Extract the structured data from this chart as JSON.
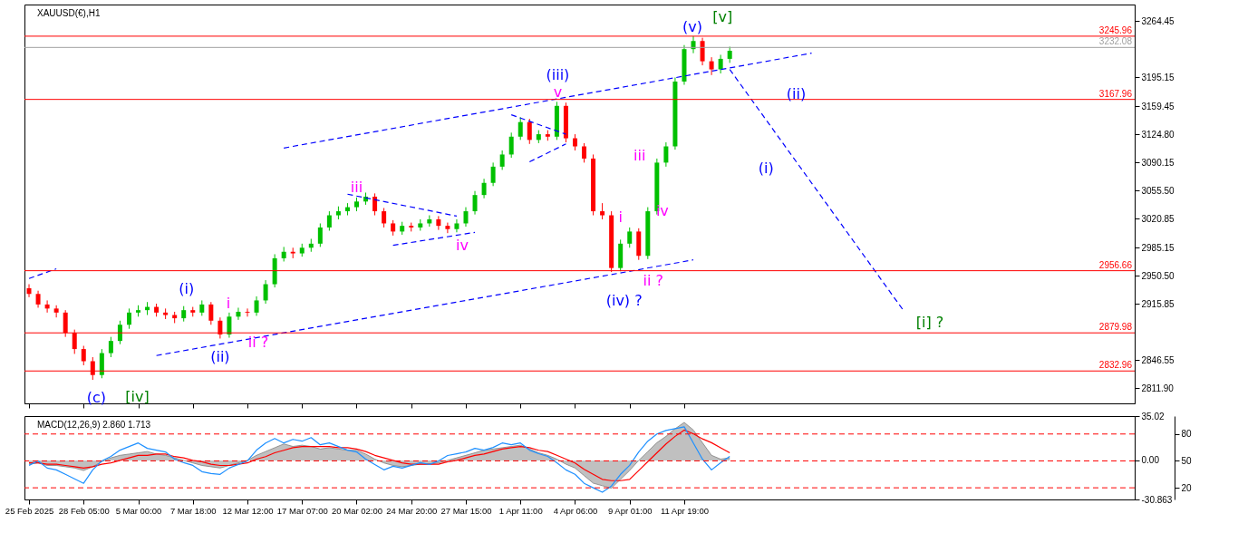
{
  "chart_data": [
    {
      "type": "candlestick",
      "title": "XAUUSD(€),H1",
      "tick_labels": "y",
      "categories": [
        "25 Feb 2025",
        null,
        null,
        null,
        null,
        null,
        "28 Feb 05:00",
        null,
        null,
        null,
        null,
        null,
        "5 Mar 00:00",
        null,
        null,
        null,
        null,
        null,
        "7 Mar 18:00",
        null,
        null,
        null,
        null,
        null,
        "12 Mar 12:00",
        null,
        null,
        null,
        null,
        null,
        "17 Mar 07:00",
        null,
        null,
        null,
        null,
        null,
        "20 Mar 02:00",
        null,
        null,
        null,
        null,
        null,
        "24 Mar 20:00",
        null,
        null,
        null,
        null,
        null,
        "27 Mar 15:00",
        null,
        null,
        null,
        null,
        null,
        "1 Apr 11:00",
        null,
        null,
        null,
        null,
        null,
        "4 Apr 06:00",
        null,
        null,
        null,
        null,
        null,
        "9 Apr 01:00",
        null,
        null,
        null,
        null,
        null,
        "11 Apr 19:00",
        null,
        null,
        null,
        null,
        null,
        null,
        null,
        null,
        null,
        null,
        null,
        null,
        null,
        null,
        null,
        null,
        null,
        null,
        null,
        null,
        null,
        null,
        null,
        null,
        null,
        null,
        null,
        null,
        null,
        null,
        null,
        null,
        null,
        null,
        null,
        null,
        null,
        null,
        null,
        null,
        null,
        null,
        null,
        null,
        null,
        null,
        null,
        null,
        null
      ],
      "ohlc": [
        [
          2935,
          2940,
          2924,
          2928
        ],
        [
          2928,
          2932,
          2911,
          2915
        ],
        [
          2915,
          2920,
          2905,
          2910
        ],
        [
          2910,
          2914,
          2899,
          2905
        ],
        [
          2905,
          2908,
          2875,
          2880
        ],
        [
          2880,
          2884,
          2854,
          2860
        ],
        [
          2860,
          2864,
          2840,
          2845
        ],
        [
          2845,
          2850,
          2822,
          2828
        ],
        [
          2828,
          2860,
          2824,
          2855
        ],
        [
          2855,
          2875,
          2850,
          2870
        ],
        [
          2870,
          2895,
          2866,
          2890
        ],
        [
          2890,
          2910,
          2885,
          2905
        ],
        [
          2905,
          2914,
          2900,
          2908
        ],
        [
          2908,
          2918,
          2902,
          2912
        ],
        [
          2912,
          2916,
          2900,
          2905
        ],
        [
          2905,
          2910,
          2897,
          2902
        ],
        [
          2902,
          2906,
          2892,
          2898
        ],
        [
          2898,
          2913,
          2894,
          2908
        ],
        [
          2908,
          2912,
          2900,
          2905
        ],
        [
          2905,
          2920,
          2901,
          2915
        ],
        [
          2915,
          2918,
          2890,
          2895
        ],
        [
          2895,
          2899,
          2873,
          2878
        ],
        [
          2878,
          2905,
          2874,
          2900
        ],
        [
          2900,
          2911,
          2896,
          2906
        ],
        [
          2906,
          2910,
          2900,
          2905
        ],
        [
          2905,
          2925,
          2901,
          2920
        ],
        [
          2920,
          2945,
          2916,
          2940
        ],
        [
          2940,
          2977,
          2936,
          2972
        ],
        [
          2972,
          2986,
          2968,
          2980
        ],
        [
          2980,
          2985,
          2972,
          2978
        ],
        [
          2978,
          2990,
          2974,
          2985
        ],
        [
          2985,
          2996,
          2980,
          2990
        ],
        [
          2990,
          3015,
          2986,
          3010
        ],
        [
          3010,
          3030,
          3006,
          3025
        ],
        [
          3025,
          3036,
          3020,
          3030
        ],
        [
          3030,
          3040,
          3025,
          3035
        ],
        [
          3035,
          3047,
          3030,
          3042
        ],
        [
          3042,
          3053,
          3038,
          3048
        ],
        [
          3048,
          3052,
          3025,
          3030
        ],
        [
          3030,
          3034,
          3010,
          3015
        ],
        [
          3015,
          3019,
          3000,
          3005
        ],
        [
          3005,
          3017,
          3001,
          3012
        ],
        [
          3012,
          3016,
          3005,
          3010
        ],
        [
          3010,
          3020,
          3006,
          3015
        ],
        [
          3015,
          3025,
          3011,
          3020
        ],
        [
          3020,
          3024,
          3007,
          3012
        ],
        [
          3012,
          3016,
          3003,
          3008
        ],
        [
          3008,
          3020,
          3004,
          3015
        ],
        [
          3015,
          3035,
          3011,
          3030
        ],
        [
          3030,
          3055,
          3026,
          3050
        ],
        [
          3050,
          3070,
          3046,
          3065
        ],
        [
          3065,
          3090,
          3061,
          3085
        ],
        [
          3085,
          3105,
          3081,
          3100
        ],
        [
          3100,
          3127,
          3096,
          3122
        ],
        [
          3122,
          3146,
          3118,
          3140
        ],
        [
          3140,
          3144,
          3113,
          3118
        ],
        [
          3118,
          3130,
          3114,
          3125
        ],
        [
          3125,
          3130,
          3117,
          3122
        ],
        [
          3122,
          3165,
          3118,
          3160
        ],
        [
          3160,
          3164,
          3115,
          3120
        ],
        [
          3120,
          3125,
          3105,
          3110
        ],
        [
          3110,
          3114,
          3090,
          3095
        ],
        [
          3095,
          3100,
          3025,
          3030
        ],
        [
          3030,
          3040,
          3020,
          3025
        ],
        [
          3025,
          3030,
          2955,
          2960
        ],
        [
          2960,
          2995,
          2956,
          2990
        ],
        [
          2990,
          3010,
          2985,
          3005
        ],
        [
          3005,
          3009,
          2970,
          2975
        ],
        [
          2975,
          3035,
          2971,
          3030
        ],
        [
          3030,
          3095,
          3026,
          3090
        ],
        [
          3090,
          3115,
          3085,
          3110
        ],
        [
          3110,
          3195,
          3106,
          3190
        ],
        [
          3190,
          3235,
          3186,
          3230
        ],
        [
          3230,
          3246,
          3225,
          3240
        ],
        [
          3240,
          3244,
          3210,
          3215
        ],
        [
          3215,
          3220,
          3198,
          3205
        ],
        [
          3205,
          3223,
          3200,
          3218
        ],
        [
          3218,
          3233,
          3213,
          3228
        ],
        null,
        null,
        null,
        null,
        null,
        null,
        null,
        null,
        null,
        null,
        null,
        null,
        null,
        null,
        null,
        null,
        null,
        null,
        null,
        null,
        null,
        null,
        null,
        null,
        null,
        null,
        null,
        null,
        null,
        null,
        null,
        null,
        null,
        null,
        null,
        null,
        null,
        null,
        null,
        null,
        null,
        null,
        null,
        null
      ],
      "colors": [
        "#ff0000",
        "#ff0000",
        "#ff0000",
        "#ff0000",
        "#ff0000",
        "#ff0000",
        "#ff0000",
        "#ff0000",
        "#00c000",
        "#00c000",
        "#00c000",
        "#00c000",
        "#00c000",
        "#00c000",
        "#ff0000",
        "#ff0000",
        "#ff0000",
        "#00c000",
        "#ff0000",
        "#00c000",
        "#ff0000",
        "#ff0000",
        "#00c000",
        "#00c000",
        "#ff0000",
        "#00c000",
        "#00c000",
        "#00c000",
        "#00c000",
        "#ff0000",
        "#00c000",
        "#00c000",
        "#00c000",
        "#00c000",
        "#00c000",
        "#00c000",
        "#00c000",
        "#00c000",
        "#ff0000",
        "#ff0000",
        "#ff0000",
        "#00c000",
        "#ff0000",
        "#00c000",
        "#00c000",
        "#ff0000",
        "#ff0000",
        "#00c000",
        "#00c000",
        "#00c000",
        "#00c000",
        "#00c000",
        "#00c000",
        "#00c000",
        "#00c000",
        "#ff0000",
        "#00c000",
        "#ff0000",
        "#00c000",
        "#ff0000",
        "#ff0000",
        "#ff0000",
        "#ff0000",
        "#ff0000",
        "#ff0000",
        "#00c000",
        "#00c000",
        "#ff0000",
        "#00c000",
        "#00c000",
        "#00c000",
        "#00c000",
        "#00c000",
        "#00c000",
        "#ff0000",
        "#ff0000",
        "#00c000",
        "#00c000",
        null,
        null,
        null,
        null,
        null,
        null,
        null,
        null,
        null,
        null,
        null,
        null,
        null,
        null,
        null,
        null,
        null,
        null,
        null,
        null,
        null,
        null,
        null,
        null,
        null,
        null,
        null,
        null,
        null,
        null,
        null,
        null,
        null,
        null,
        null,
        null,
        null,
        null,
        null,
        null,
        null,
        null,
        null,
        null
      ],
      "ylim": [
        2793,
        3285
      ],
      "yticks": [
        {
          "value": 3264.45,
          "label": "3264.45"
        },
        {
          "value": 3195.15,
          "label": "3195.15"
        },
        {
          "value": 3159.45,
          "label": "3159.45"
        },
        {
          "value": 3124.8,
          "label": "3124.80"
        },
        {
          "value": 3090.15,
          "label": "3090.15"
        },
        {
          "value": 3055.5,
          "label": "3055.50"
        },
        {
          "value": 3020.85,
          "label": "3020.85"
        },
        {
          "value": 2985.15,
          "label": "2985.15"
        },
        {
          "value": 2950.5,
          "label": "2950.50"
        },
        {
          "value": 2915.85,
          "label": "2915.85"
        },
        {
          "value": 2846.55,
          "label": "2846.55"
        },
        {
          "value": 2811.9,
          "label": "2811.90"
        }
      ],
      "series": [
        {
          "type": "line",
          "color": "#0000ff",
          "line_style": "dashed",
          "values": [
            null,
            null,
            null,
            null,
            null,
            null,
            null,
            null,
            null,
            null,
            null,
            null,
            null,
            null,
            null,
            null,
            null,
            null,
            null,
            null,
            null,
            null,
            null,
            null,
            null,
            null,
            null,
            null,
            3108,
            null,
            null,
            null,
            null,
            null,
            null,
            null,
            null,
            null,
            null,
            null,
            null,
            null,
            null,
            null,
            null,
            null,
            null,
            null,
            null,
            null,
            null,
            null,
            null,
            null,
            null,
            null,
            null,
            null,
            null,
            null,
            null,
            null,
            null,
            null,
            null,
            null,
            null,
            null,
            null,
            null,
            null,
            null,
            null,
            null,
            null,
            null,
            null,
            null,
            null,
            null,
            null,
            null,
            null,
            null,
            null,
            null,
            3225,
            null,
            null,
            null,
            null,
            null,
            null,
            null,
            null,
            null,
            null,
            null,
            null,
            null,
            null,
            null,
            null,
            null,
            null,
            null,
            null,
            null,
            null,
            null,
            null,
            null,
            null,
            null,
            null,
            null,
            null,
            null,
            null,
            null,
            null,
            null
          ]
        },
        {
          "type": "line",
          "color": "#0000ff",
          "line_style": "dashed",
          "values": [
            null,
            null,
            null,
            null,
            null,
            null,
            null,
            null,
            null,
            null,
            null,
            null,
            null,
            null,
            2852,
            null,
            null,
            null,
            null,
            null,
            null,
            null,
            null,
            null,
            null,
            null,
            null,
            null,
            null,
            null,
            null,
            null,
            null,
            null,
            null,
            null,
            null,
            null,
            null,
            null,
            null,
            null,
            null,
            null,
            null,
            null,
            null,
            null,
            null,
            null,
            null,
            null,
            null,
            null,
            null,
            null,
            null,
            null,
            null,
            null,
            null,
            null,
            null,
            null,
            null,
            null,
            null,
            null,
            null,
            null,
            null,
            null,
            null,
            2970,
            null,
            null,
            null,
            null,
            null,
            null,
            null,
            null,
            null,
            null,
            null,
            null,
            null,
            null,
            null,
            null,
            null,
            null,
            null,
            null,
            null,
            null,
            null,
            null,
            null,
            null,
            null,
            null,
            null,
            null,
            null,
            null,
            null,
            null,
            null,
            null,
            null,
            null,
            null,
            null,
            null,
            null,
            null,
            null,
            null,
            null,
            null,
            null
          ]
        },
        {
          "type": "line",
          "color": "#0000ff",
          "line_style": "dashed",
          "values": [
            2947,
            null,
            null,
            2959,
            null,
            null,
            null,
            null,
            null,
            null,
            null,
            null,
            null,
            null,
            null,
            null,
            null,
            null,
            null,
            null,
            null,
            null,
            null,
            null,
            null,
            null,
            null,
            null,
            null,
            null,
            null,
            null,
            null,
            null,
            null,
            null,
            null,
            null,
            null,
            null,
            null,
            null,
            null,
            null,
            null,
            null,
            null,
            null,
            null,
            null,
            null,
            null,
            null,
            null,
            null,
            null,
            null,
            null,
            null,
            null,
            null,
            null,
            null,
            null,
            null,
            null,
            null,
            null,
            null,
            null,
            null,
            null,
            null,
            null,
            null,
            null,
            null,
            null,
            null,
            null,
            null,
            null,
            null,
            null,
            null,
            null,
            null,
            null,
            null,
            null,
            null,
            null,
            null,
            null,
            null,
            null,
            null,
            null,
            null,
            null,
            null,
            null,
            null,
            null,
            null,
            null,
            null,
            null,
            null,
            null,
            null,
            null,
            null,
            null,
            null,
            null,
            null,
            null,
            null,
            null,
            null,
            null
          ]
        },
        {
          "type": "line",
          "color": "#0000ff",
          "line_style": "dashed",
          "values": [
            null,
            null,
            null,
            null,
            null,
            null,
            null,
            null,
            null,
            null,
            null,
            null,
            null,
            null,
            null,
            null,
            null,
            null,
            null,
            null,
            null,
            null,
            null,
            null,
            null,
            null,
            null,
            null,
            null,
            null,
            null,
            null,
            null,
            null,
            null,
            3051,
            null,
            null,
            null,
            null,
            null,
            null,
            null,
            null,
            null,
            null,
            null,
            3024,
            null,
            null,
            null,
            null,
            null,
            null,
            null,
            null,
            null,
            null,
            null,
            null,
            null,
            null,
            null,
            null,
            null,
            null,
            null,
            null,
            null,
            null,
            null,
            null,
            null,
            null,
            null,
            null,
            null,
            null,
            null,
            null,
            null,
            null,
            null,
            null,
            null,
            null,
            null,
            null,
            null,
            null,
            null,
            null,
            null,
            null,
            null,
            null,
            null,
            null,
            null,
            null,
            null,
            null,
            null,
            null,
            null,
            null,
            null,
            null,
            null,
            null,
            null,
            null,
            null,
            null,
            null,
            null,
            null,
            null,
            null,
            null,
            null,
            null
          ]
        },
        {
          "type": "line",
          "color": "#0000ff",
          "line_style": "dashed",
          "values": [
            null,
            null,
            null,
            null,
            null,
            null,
            null,
            null,
            null,
            null,
            null,
            null,
            null,
            null,
            null,
            null,
            null,
            null,
            null,
            null,
            null,
            null,
            null,
            null,
            null,
            null,
            null,
            null,
            null,
            null,
            null,
            null,
            null,
            null,
            null,
            null,
            null,
            null,
            null,
            null,
            2988,
            null,
            null,
            null,
            null,
            null,
            null,
            null,
            null,
            3004,
            null,
            null,
            null,
            null,
            null,
            null,
            null,
            null,
            null,
            null,
            null,
            null,
            null,
            null,
            null,
            null,
            null,
            null,
            null,
            null,
            null,
            null,
            null,
            null,
            null,
            null,
            null,
            null,
            null,
            null,
            null,
            null,
            null,
            null,
            null,
            null,
            null,
            null,
            null,
            null,
            null,
            null,
            null,
            null,
            null,
            null,
            null,
            null,
            null,
            null,
            null,
            null,
            null,
            null,
            null,
            null,
            null,
            null,
            null,
            null,
            null,
            null,
            null,
            null,
            null,
            null,
            null,
            null,
            null,
            null,
            null,
            null
          ]
        },
        {
          "type": "line",
          "color": "#0000ff",
          "line_style": "dashed",
          "values": [
            null,
            null,
            null,
            null,
            null,
            null,
            null,
            null,
            null,
            null,
            null,
            null,
            null,
            null,
            null,
            null,
            null,
            null,
            null,
            null,
            null,
            null,
            null,
            null,
            null,
            null,
            null,
            null,
            null,
            null,
            null,
            null,
            null,
            null,
            null,
            null,
            null,
            null,
            null,
            null,
            null,
            null,
            null,
            null,
            null,
            null,
            null,
            null,
            null,
            null,
            null,
            null,
            null,
            3149,
            null,
            null,
            null,
            null,
            null,
            3125,
            null,
            null,
            null,
            null,
            null,
            null,
            null,
            null,
            null,
            null,
            null,
            null,
            null,
            null,
            null,
            null,
            null,
            null,
            null,
            null,
            null,
            null,
            null,
            null,
            null,
            null,
            null,
            null,
            null,
            null,
            null,
            null,
            null,
            null,
            null,
            null,
            null,
            null,
            null,
            null,
            null,
            null,
            null,
            null,
            null,
            null,
            null,
            null,
            null,
            null,
            null,
            null,
            null,
            null,
            null,
            null,
            null,
            null,
            null,
            null,
            null,
            null
          ]
        },
        {
          "type": "line",
          "color": "#0000ff",
          "line_style": "dashed",
          "values": [
            null,
            null,
            null,
            null,
            null,
            null,
            null,
            null,
            null,
            null,
            null,
            null,
            null,
            null,
            null,
            null,
            null,
            null,
            null,
            null,
            null,
            null,
            null,
            null,
            null,
            null,
            null,
            null,
            null,
            null,
            null,
            null,
            null,
            null,
            null,
            null,
            null,
            null,
            null,
            null,
            null,
            null,
            null,
            null,
            null,
            null,
            null,
            null,
            null,
            null,
            null,
            null,
            null,
            null,
            null,
            3091,
            null,
            null,
            null,
            3113,
            null,
            null,
            null,
            null,
            null,
            null,
            null,
            null,
            null,
            null,
            null,
            null,
            null,
            null,
            null,
            null,
            null,
            null,
            null,
            null,
            null,
            null,
            null,
            null,
            null,
            null,
            null,
            null,
            null,
            null,
            null,
            null,
            null,
            null,
            null,
            null,
            null,
            null,
            null,
            null,
            null,
            null,
            null,
            null,
            null,
            null,
            null,
            null,
            null,
            null,
            null,
            null,
            null,
            null,
            null,
            null,
            null,
            null,
            null,
            null,
            null,
            null
          ]
        },
        {
          "type": "line",
          "color": "#0000ff",
          "line_style": "dashed",
          "values": [
            null,
            null,
            null,
            null,
            null,
            null,
            null,
            null,
            null,
            null,
            null,
            null,
            null,
            null,
            null,
            null,
            null,
            null,
            null,
            null,
            null,
            null,
            null,
            null,
            null,
            null,
            null,
            null,
            null,
            null,
            null,
            null,
            null,
            null,
            null,
            null,
            null,
            null,
            null,
            null,
            null,
            null,
            null,
            null,
            null,
            null,
            null,
            null,
            null,
            null,
            null,
            null,
            null,
            null,
            null,
            null,
            null,
            null,
            null,
            null,
            null,
            null,
            null,
            null,
            null,
            null,
            null,
            null,
            null,
            null,
            null,
            null,
            null,
            null,
            null,
            null,
            null,
            3205,
            null,
            null,
            null,
            null,
            null,
            null,
            null,
            null,
            null,
            null,
            null,
            null,
            null,
            null,
            null,
            null,
            null,
            null,
            2909,
            null,
            null,
            null,
            null,
            null,
            null,
            null,
            null,
            null,
            null,
            null,
            null,
            null,
            null,
            null,
            null,
            null,
            null,
            null,
            null,
            null,
            null,
            null,
            null,
            null
          ]
        }
      ],
      "ref_lines": [
        {
          "axis": "y",
          "value": 3245.96,
          "label": "3245.96",
          "color": "#ff0000"
        },
        {
          "axis": "y",
          "value": 3232.08,
          "label": "3232.08",
          "color": "#a0a0a0"
        },
        {
          "axis": "y",
          "value": 3167.96,
          "label": "3167.96",
          "color": "#ff0000"
        },
        {
          "axis": "y",
          "value": 2956.66,
          "label": "2956.66",
          "color": "#ff0000"
        },
        {
          "axis": "y",
          "value": 2879.98,
          "label": "2879.98",
          "color": "#ff0000"
        },
        {
          "axis": "y",
          "value": 2832.96,
          "label": "2832.96",
          "color": "#ff0000"
        }
      ],
      "annotations": [
        "(c)",
        "[iv]",
        "(i)",
        "i",
        "ii ?",
        "(ii)",
        "iii",
        "iv",
        "(iii)",
        "v",
        "i",
        "ii ?",
        "iii",
        "iv",
        "(iv) ?",
        "(v)",
        "[v]",
        "(ii)",
        "(i)",
        "[i] ?"
      ]
    },
    {
      "type": "line",
      "title": "MACD(12,26,9) 2.860 1.713",
      "ylim": [
        -30.863,
        35.02
      ],
      "yticks": [
        {
          "value": 35.02,
          "label": "35.02"
        },
        {
          "value": 0,
          "label": "0.00"
        },
        {
          "value": -30.863,
          "label": "-30.863"
        }
      ],
      "y2lim": [
        7,
        100
      ],
      "y2ticks": [
        80,
        50,
        20
      ],
      "series": [
        {
          "type": "area",
          "color": "#c0c0c0",
          "values": [
            -3,
            -2,
            -4,
            -4,
            -5,
            -6,
            -8,
            -5,
            -1,
            2,
            4,
            5,
            6,
            7,
            5,
            4,
            2,
            0,
            -2,
            -4,
            -5,
            -6,
            -4,
            -2,
            0,
            4,
            7,
            10,
            13,
            11,
            12,
            11,
            9,
            10,
            9,
            8,
            8,
            5,
            1,
            -2,
            -4,
            -5,
            -4,
            -3,
            -3,
            -2,
            0,
            2,
            4,
            6,
            8,
            9,
            10,
            11,
            12,
            9,
            6,
            4,
            1,
            -3,
            -6,
            -12,
            -18,
            -20,
            -22,
            -15,
            -8,
            0,
            7,
            14,
            19,
            25,
            30,
            24,
            14,
            4,
            1,
            2,
            null,
            null,
            null,
            null,
            null,
            null,
            null,
            null,
            null,
            null,
            null,
            null,
            null,
            null,
            null,
            null,
            null,
            null,
            null,
            null,
            null,
            null,
            null,
            null,
            null,
            null,
            null,
            null,
            null,
            null,
            null,
            null,
            null,
            null,
            null,
            null,
            null,
            null,
            null,
            null,
            null,
            null,
            null,
            null
          ]
        },
        {
          "type": "line",
          "color": "#ff0000",
          "values": [
            -2,
            -2,
            -3,
            -3,
            -4,
            -5,
            -6,
            -5,
            -3,
            -2,
            0,
            2,
            4,
            4,
            5,
            5,
            3,
            2,
            0,
            -1,
            -3,
            -4,
            -4,
            -3,
            -2,
            1,
            3,
            6,
            8,
            10,
            11,
            11,
            11,
            11,
            10,
            10,
            9,
            7,
            4,
            2,
            0,
            -2,
            -3,
            -3,
            -3,
            -3,
            -1,
            0,
            2,
            4,
            5,
            7,
            9,
            10,
            11,
            10,
            8,
            7,
            4,
            1,
            -2,
            -7,
            -11,
            -15,
            -16,
            -16,
            -15,
            -8,
            -1,
            6,
            13,
            19,
            24,
            21,
            17,
            14,
            10,
            6,
            null,
            null,
            null,
            null,
            null,
            null,
            null,
            null,
            null,
            null,
            null,
            null,
            null,
            null,
            null,
            null,
            null,
            null,
            null,
            null,
            null,
            null,
            null,
            null,
            null,
            null,
            null,
            null,
            null,
            null,
            null,
            null,
            null,
            null,
            null,
            null,
            null,
            null,
            null,
            null,
            null,
            null,
            null,
            null
          ]
        },
        {
          "type": "line",
          "color": "#1e90ff",
          "axis": "y2",
          "values": [
            45,
            50,
            42,
            40,
            35,
            30,
            25,
            40,
            50,
            55,
            62,
            66,
            70,
            64,
            62,
            60,
            52,
            48,
            45,
            38,
            36,
            35,
            42,
            46,
            50,
            62,
            70,
            75,
            70,
            74,
            72,
            76,
            68,
            70,
            66,
            62,
            60,
            52,
            46,
            40,
            44,
            42,
            45,
            48,
            46,
            50,
            56,
            58,
            60,
            64,
            62,
            65,
            70,
            68,
            70,
            62,
            58,
            55,
            48,
            40,
            35,
            25,
            20,
            15,
            22,
            35,
            45,
            60,
            72,
            80,
            84,
            86,
            88,
            70,
            52,
            40,
            48,
            55,
            null,
            null,
            null,
            null,
            null,
            null,
            null,
            null,
            null,
            null,
            null,
            null,
            null,
            null,
            null,
            null,
            null,
            null,
            null,
            null,
            null,
            null,
            null,
            null,
            null,
            null,
            null,
            null,
            null,
            null,
            null,
            null,
            null,
            null,
            null,
            null,
            null,
            null,
            null,
            null,
            null,
            null,
            null,
            null
          ]
        }
      ],
      "ref_lines": [
        {
          "axis": "y2",
          "value": 80,
          "color": "#ff0000",
          "line_style": "dashed"
        },
        {
          "axis": "y2",
          "value": 50,
          "color": "#ff0000",
          "line_style": "dashed"
        },
        {
          "axis": "y2",
          "value": 20,
          "color": "#ff0000",
          "line_style": "dashed"
        }
      ]
    }
  ]
}
